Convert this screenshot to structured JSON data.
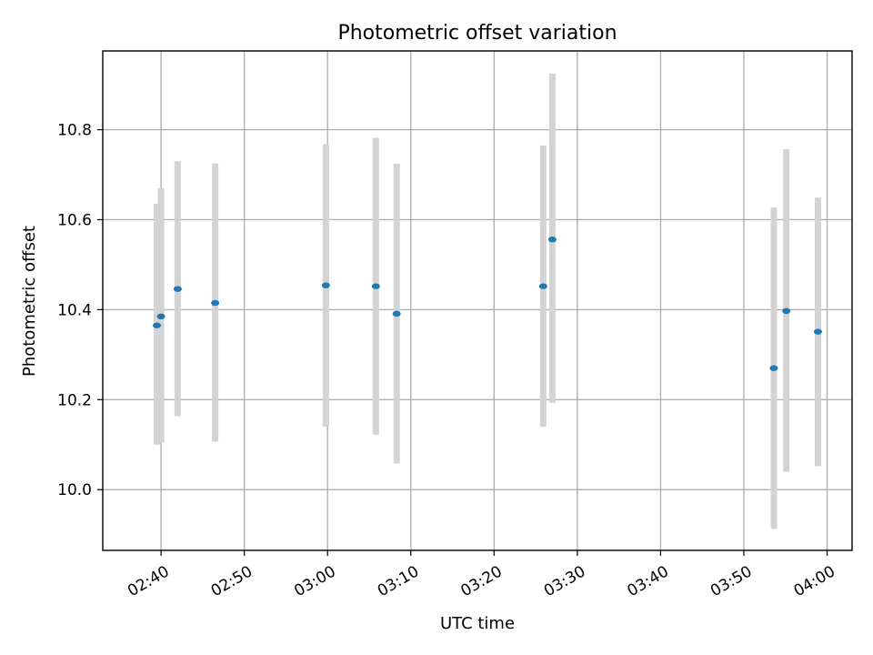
{
  "chart_data": {
    "type": "scatter",
    "title": "Photometric offset variation",
    "xlabel": "UTC time",
    "ylabel": "Photometric offset",
    "xlim": [
      "02:33",
      "04:03"
    ],
    "ylim": [
      9.865,
      10.975
    ],
    "xticks": [
      "02:40",
      "02:50",
      "03:00",
      "03:10",
      "03:20",
      "03:30",
      "03:40",
      "03:50",
      "04:00"
    ],
    "yticks": [
      "10.0",
      "10.2",
      "10.4",
      "10.6",
      "10.8"
    ],
    "grid": true,
    "points": [
      {
        "x": "02:39:30",
        "y": 10.365,
        "err_low": 10.1,
        "err_high": 10.635
      },
      {
        "x": "02:40:00",
        "y": 10.385,
        "err_low": 10.105,
        "err_high": 10.67
      },
      {
        "x": "02:42:00",
        "y": 10.446,
        "err_low": 10.163,
        "err_high": 10.73
      },
      {
        "x": "02:46:30",
        "y": 10.415,
        "err_low": 10.107,
        "err_high": 10.725
      },
      {
        "x": "02:59:48",
        "y": 10.454,
        "err_low": 10.14,
        "err_high": 10.768
      },
      {
        "x": "03:05:48",
        "y": 10.452,
        "err_low": 10.122,
        "err_high": 10.782
      },
      {
        "x": "03:08:18",
        "y": 10.391,
        "err_low": 10.058,
        "err_high": 10.724
      },
      {
        "x": "03:25:54",
        "y": 10.452,
        "err_low": 10.14,
        "err_high": 10.765
      },
      {
        "x": "03:27:00",
        "y": 10.556,
        "err_low": 10.193,
        "err_high": 10.925
      },
      {
        "x": "03:53:36",
        "y": 10.27,
        "err_low": 9.913,
        "err_high": 10.627
      },
      {
        "x": "03:55:06",
        "y": 10.397,
        "err_low": 10.04,
        "err_high": 10.757
      },
      {
        "x": "03:58:54",
        "y": 10.351,
        "err_low": 10.052,
        "err_high": 10.649
      }
    ],
    "colors": {
      "point": "#1f77b4",
      "errorbar": "#d3d3d3",
      "grid": "#b0b0b0"
    }
  }
}
